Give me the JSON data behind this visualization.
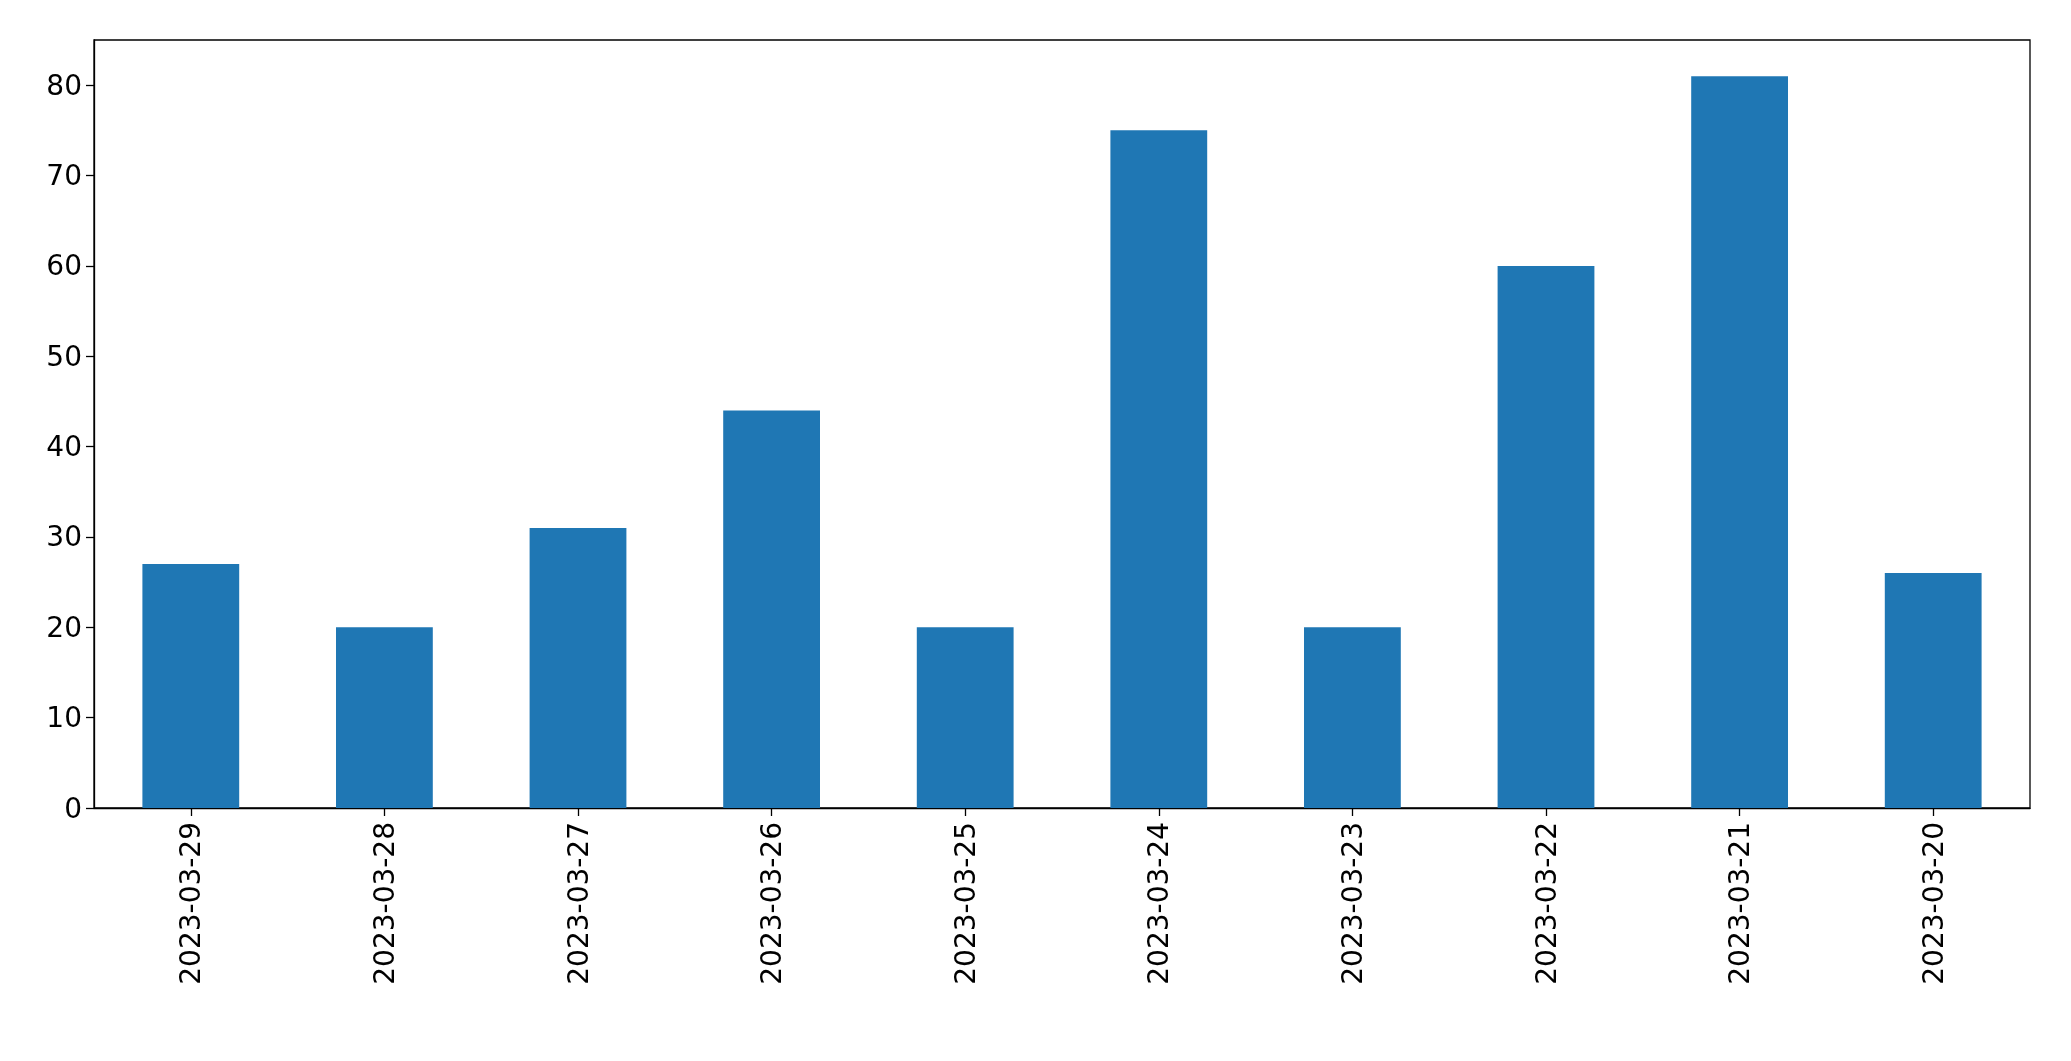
{
  "chart_data": {
    "type": "bar",
    "categories": [
      "2023-03-29",
      "2023-03-28",
      "2023-03-27",
      "2023-03-26",
      "2023-03-25",
      "2023-03-24",
      "2023-03-23",
      "2023-03-22",
      "2023-03-21",
      "2023-03-20"
    ],
    "values": [
      27,
      20,
      31,
      44,
      20,
      75,
      20,
      60,
      81,
      26
    ],
    "color": "#1f77b4",
    "ylim": [
      0,
      85
    ],
    "yticks": [
      0,
      10,
      20,
      30,
      40,
      50,
      60,
      70,
      80
    ]
  }
}
